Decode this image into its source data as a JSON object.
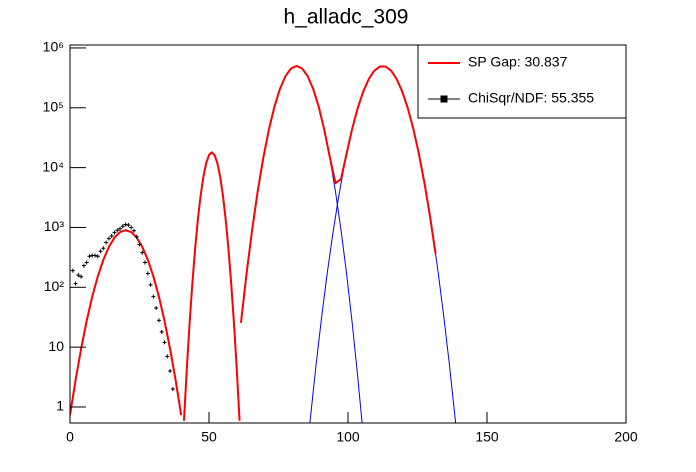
{
  "chart_data": {
    "type": "line",
    "title": "h_alladc_309",
    "xlim": [
      0,
      200
    ],
    "xticks": [
      0,
      50,
      100,
      150,
      200
    ],
    "ylim": [
      0.54,
      1120000
    ],
    "ylog": true,
    "yticks": [
      1,
      10,
      {
        "value": 100,
        "label": "10²"
      },
      {
        "value": 1000,
        "label": "10³"
      },
      {
        "value": 10000,
        "label": "10⁴"
      },
      {
        "value": 100000,
        "label": "10⁵"
      },
      {
        "value": 1000000,
        "label": "10⁶"
      }
    ],
    "grid": false,
    "legend": "top-right",
    "series": [
      {
        "color": "#0000ff",
        "mode": "line",
        "x": [
          0,
          2,
          4,
          6,
          8,
          10,
          12,
          14,
          16,
          18,
          20,
          22,
          24,
          26,
          28,
          30,
          32,
          34,
          36,
          38,
          40
        ],
        "values": [
          0.73,
          2.8,
          9.4,
          27.5,
          69.5,
          152,
          288,
          474,
          677,
          838,
          900,
          838,
          677,
          474,
          288,
          152,
          69.5,
          27.5,
          9.4,
          2.8,
          0.73
        ]
      },
      {
        "color": "#0000ff",
        "mode": "line",
        "x": [
          41,
          42,
          43,
          44,
          45,
          46,
          47,
          48,
          49,
          50,
          51,
          52,
          53,
          54,
          55,
          56,
          57,
          58,
          59,
          60,
          61
        ],
        "values": [
          0.59,
          4.2,
          24.3,
          114,
          437,
          1361,
          3450,
          7110,
          11910,
          16240,
          18000,
          16240,
          11910,
          7110,
          3450,
          1361,
          437,
          114,
          24.3,
          4.2,
          0.59
        ]
      },
      {
        "color": "#0000ff",
        "mode": "line",
        "x": [
          61.5,
          63.5,
          65.5,
          67.5,
          69.5,
          71.5,
          73.5,
          75.5,
          77.5,
          79.5,
          81.5,
          83.5,
          85.5,
          87.5,
          89.5,
          91.5,
          93.5,
          95.5,
          97.5,
          99.5,
          101.5,
          103.5,
          105.5
        ],
        "values": [
          25.5,
          168,
          900,
          3960,
          14300,
          42300,
          103000,
          205500,
          337000,
          453000,
          500000,
          453000,
          337000,
          205500,
          103000,
          42300,
          14300,
          3960,
          900,
          168,
          25.5,
          3.2,
          0.33
        ]
      },
      {
        "color": "#0000ff",
        "mode": "line",
        "x": [
          84.5,
          86.5,
          88.5,
          90.5,
          92.5,
          94.5,
          96.5,
          98.5,
          100.5,
          102.5,
          104.5,
          106.5,
          108.5,
          110.5,
          112.5,
          114.5,
          116.5,
          118.5,
          120.5,
          122.5,
          124.5,
          126.5,
          128.5,
          130.5,
          132.5,
          134.5,
          136.5,
          138.5,
          140.5
        ],
        "values": [
          0.078,
          0.67,
          5.0,
          31.3,
          168,
          766,
          2990,
          9900,
          28100,
          67700,
          139000,
          243000,
          363000,
          461500,
          500000,
          461500,
          363000,
          243000,
          139000,
          67700,
          28100,
          9900,
          2990,
          766,
          168,
          31.3,
          5.0,
          0.67,
          0.078
        ]
      },
      {
        "name": "SP Gap: 30.837",
        "color": "#ff0000",
        "mode": "line",
        "x": [
          0,
          2,
          4,
          6,
          8,
          10,
          12,
          14,
          16,
          18,
          20,
          22,
          24,
          26,
          28,
          30,
          32,
          34,
          36,
          38,
          40,
          40.5,
          41,
          42,
          43,
          44,
          45,
          46,
          47,
          48,
          49,
          50,
          51,
          52,
          53,
          54,
          55,
          56,
          57,
          58,
          59,
          60,
          61,
          61.25,
          61.5,
          63.5,
          65.5,
          67.5,
          69.5,
          71.5,
          73.5,
          75.5,
          77.5,
          79.5,
          81.5,
          83.5,
          85.5,
          87.5,
          89.5,
          91.5,
          93.5,
          95.5,
          97.5,
          99.5,
          101.5,
          103.5,
          105.5,
          107.5,
          109.5,
          111.5,
          113.5,
          115.5,
          117.5,
          119.5,
          121.5,
          123.5,
          125.5,
          127.5,
          129.5,
          131.5
        ],
        "values": [
          0.73,
          2.8,
          9.4,
          27.5,
          69.5,
          152,
          288,
          474,
          677,
          838,
          900,
          838,
          677,
          474,
          288,
          152,
          69.5,
          27.5,
          9.4,
          2.8,
          0.73,
          null,
          0.59,
          4.2,
          24.3,
          114,
          437,
          1361,
          3450,
          7110,
          11910,
          16240,
          18000,
          16240,
          11910,
          7110,
          3450,
          1361,
          437,
          114,
          24.3,
          4.2,
          0.59,
          null,
          25.5,
          168,
          900,
          3960,
          14300,
          42300,
          103000,
          205500,
          337000,
          453000,
          500000,
          453000,
          337000,
          205502,
          103013,
          42374,
          14665,
          5500,
          6450,
          17168,
          44525,
          99003,
          187600,
          303000,
          417600,
          490000,
          490000,
          417600,
          303000,
          187600,
          99000,
          44500,
          17000,
          5550,
          1540,
          365
        ]
      },
      {
        "name": "ChiSqr/NDF: 55.355",
        "color": "#000000",
        "mode": "markers",
        "x": [
          1,
          2,
          3,
          4,
          5,
          6,
          7,
          8,
          9,
          10,
          11,
          12,
          13,
          14,
          15,
          16,
          17,
          18,
          19,
          20,
          21,
          22,
          23,
          24,
          25,
          26,
          27,
          28,
          29,
          30,
          31,
          32,
          33,
          34,
          35,
          36,
          37
        ],
        "values": [
          190,
          115,
          160,
          150,
          230,
          260,
          330,
          340,
          340,
          330,
          400,
          450,
          560,
          650,
          720,
          820,
          900,
          950,
          1050,
          1120,
          1100,
          1000,
          880,
          700,
          520,
          380,
          260,
          170,
          110,
          70,
          45,
          28,
          18,
          12,
          7,
          4,
          2
        ]
      }
    ]
  }
}
